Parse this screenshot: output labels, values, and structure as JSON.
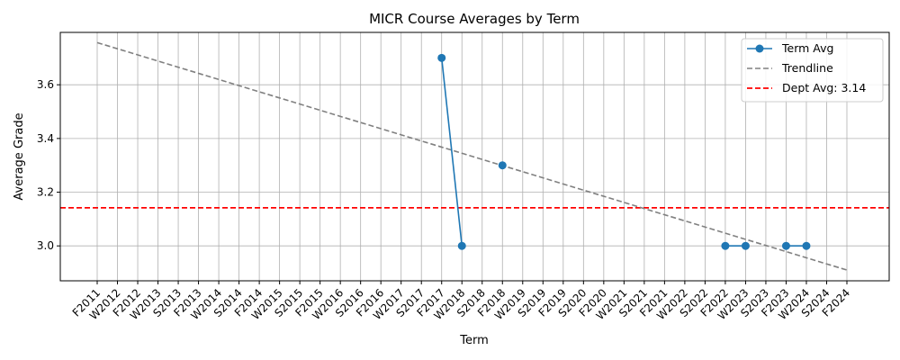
{
  "chart_data": {
    "type": "line",
    "title": "MICR Course Averages by Term",
    "xlabel": "Term",
    "ylabel": "Average Grade",
    "categories": [
      "F2011",
      "W2012",
      "F2012",
      "W2013",
      "S2013",
      "F2013",
      "W2014",
      "S2014",
      "F2014",
      "W2015",
      "S2015",
      "F2015",
      "W2016",
      "S2016",
      "F2016",
      "W2017",
      "S2017",
      "F2017",
      "W2018",
      "S2018",
      "F2018",
      "W2019",
      "S2019",
      "F2019",
      "S2020",
      "F2020",
      "W2021",
      "S2021",
      "F2021",
      "W2022",
      "S2022",
      "F2022",
      "W2023",
      "S2023",
      "F2023",
      "W2024",
      "S2024",
      "F2024"
    ],
    "ylim": [
      2.87,
      3.795
    ],
    "yticks": [
      "3.0",
      "3.2",
      "3.4",
      "3.6"
    ],
    "grid": true,
    "legend_position": "top-right",
    "series": [
      {
        "name": "Term Avg",
        "style": "solid-marker",
        "color": "#1f77b4",
        "points": [
          [
            "F2017",
            3.7
          ],
          [
            "W2018",
            3.0
          ],
          [
            "F2018",
            3.3
          ],
          [
            "F2022",
            3.0
          ],
          [
            "W2023",
            3.0
          ],
          [
            "F2023",
            3.0
          ],
          [
            "W2024",
            3.0
          ]
        ],
        "segments": [
          [
            "F2017",
            "W2018"
          ],
          [
            "F2022",
            "W2023"
          ],
          [
            "F2023",
            "W2024"
          ]
        ]
      },
      {
        "name": "Trendline",
        "style": "dashed",
        "color": "#808080",
        "from": [
          "F2011",
          3.757
        ],
        "to": [
          "F2024",
          2.91
        ]
      },
      {
        "name": "Dept Avg: 3.14",
        "style": "dashed-horizontal",
        "color": "#ff0000",
        "value": 3.142
      }
    ]
  }
}
